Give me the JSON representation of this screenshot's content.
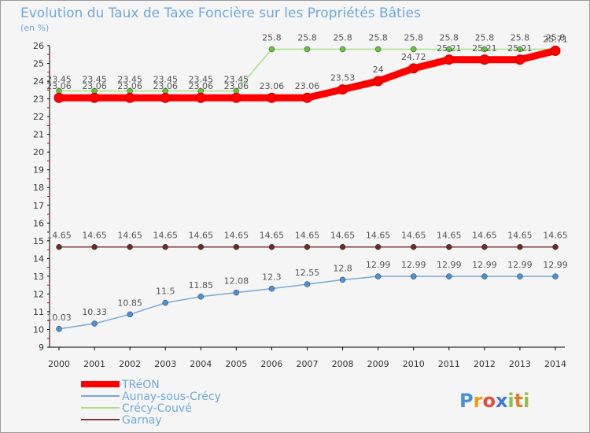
{
  "chart_data": {
    "type": "line",
    "title": "Evolution du Taux de Taxe Foncière sur les Propriétés Bâties",
    "subtitle": "(en %)",
    "x": [
      "2000",
      "2001",
      "2002",
      "2003",
      "2004",
      "2005",
      "2006",
      "2007",
      "2008",
      "2009",
      "2010",
      "2011",
      "2012",
      "2013",
      "2014"
    ],
    "ylim": [
      9,
      26
    ],
    "yticks": [
      9,
      10,
      11,
      12,
      13,
      14,
      15,
      16,
      17,
      18,
      19,
      20,
      21,
      22,
      23,
      24,
      25,
      26
    ],
    "grid": false,
    "legend_position": "bottom-left",
    "series": [
      {
        "name": "TRéON",
        "color": "#ff0000",
        "width": 9,
        "marker": "#ff0000",
        "values": [
          23.06,
          23.06,
          23.06,
          23.06,
          23.06,
          23.06,
          23.06,
          23.06,
          23.53,
          24,
          24.72,
          25.21,
          25.21,
          25.21,
          25.71
        ],
        "labels": [
          "23.06",
          "23.06",
          "23.06",
          "23.06",
          "23.06",
          "23.06",
          "23.06",
          "23.06",
          "23.53",
          "24",
          "24.72",
          "25.21",
          "25.21",
          "25.21",
          "25.71"
        ]
      },
      {
        "name": "Aunay-sous-Crécy",
        "color": "#7ba7d6",
        "width": 1.5,
        "marker": "#4a90d9",
        "values": [
          10.03,
          10.33,
          10.85,
          11.5,
          11.85,
          12.08,
          12.3,
          12.55,
          12.8,
          12.99,
          12.99,
          12.99,
          12.99,
          12.99,
          12.99
        ],
        "labels": [
          "10.03",
          "10.33",
          "10.85",
          "11.5",
          "11.85",
          "12.08",
          "12.3",
          "12.55",
          "12.8",
          "12.99",
          "12.99",
          "12.99",
          "12.99",
          "12.99",
          "12.99"
        ]
      },
      {
        "name": "Crécy-Couvé",
        "color": "#a6e08a",
        "width": 1.5,
        "marker": "#66c13a",
        "values": [
          23.45,
          23.45,
          23.45,
          23.45,
          23.45,
          23.45,
          25.8,
          25.8,
          25.8,
          25.8,
          25.8,
          25.8,
          25.8,
          25.8,
          25.8
        ],
        "labels": [
          "23.45",
          "23.45",
          "23.45",
          "23.45",
          "23.45",
          "23.45",
          "25.8",
          "25.8",
          "25.8",
          "25.8",
          "25.8",
          "25.8",
          "25.8",
          "25.8",
          "25.8"
        ]
      },
      {
        "name": "Garnay",
        "color": "#7a3a3a",
        "width": 1.5,
        "marker": "#6a2a2a",
        "values": [
          14.65,
          14.65,
          14.65,
          14.65,
          14.65,
          14.65,
          14.65,
          14.65,
          14.65,
          14.65,
          14.65,
          14.65,
          14.65,
          14.65,
          14.65
        ],
        "labels": [
          "14.65",
          "14.65",
          "14.65",
          "14.65",
          "14.65",
          "14.65",
          "14.65",
          "14.65",
          "14.65",
          "14.65",
          "14.65",
          "14.65",
          "14.65",
          "14.65",
          "14.65"
        ]
      }
    ]
  },
  "logo": {
    "p": "P",
    "r": "r",
    "o": "o",
    "x": "x",
    "i1": "i",
    "t": "t",
    "i2": "i"
  },
  "logo_colors": {
    "p": "#4a90d9",
    "r": "#f39c12",
    "o": "#e74c3c",
    "x": "#3a7ad9",
    "i1": "#8bc34a",
    "t": "#e67e22",
    "i2": "#8bc34a"
  }
}
